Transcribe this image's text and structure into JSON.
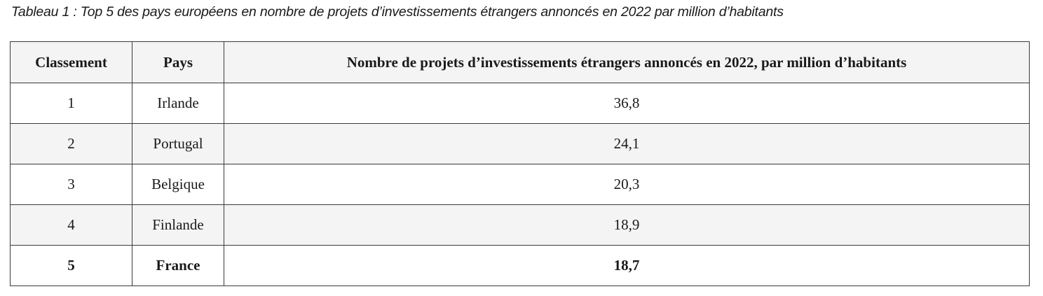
{
  "caption": "Tableau 1 : Top 5 des pays européens en nombre de projets d’investissements étrangers annoncés en 2022 par million d’habitants",
  "table": {
    "headers": [
      "Classement",
      "Pays",
      "Nombre de projets d’investissements étrangers annoncés en 2022, par million d’habitants"
    ],
    "rows": [
      [
        "1",
        "Irlande",
        "36,8"
      ],
      [
        "2",
        "Portugal",
        "24,1"
      ],
      [
        "3",
        "Belgique",
        "20,3"
      ],
      [
        "4",
        "Finlande",
        "18,9"
      ],
      [
        "5",
        "France",
        "18,7"
      ]
    ],
    "highlighted_row": "France"
  }
}
